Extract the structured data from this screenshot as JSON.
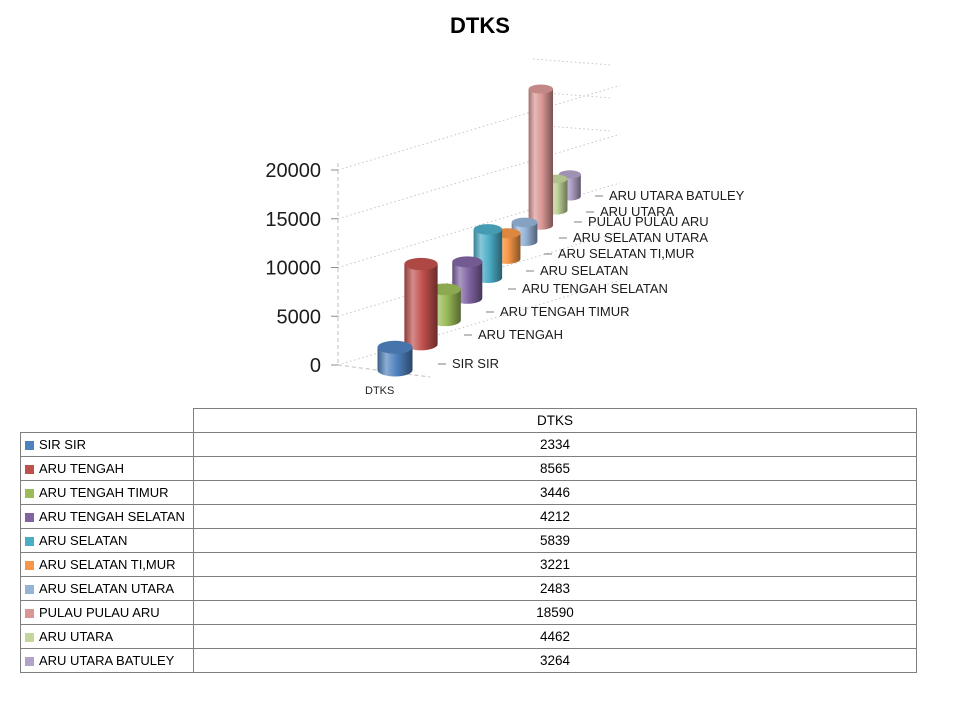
{
  "title": "DTKS",
  "chart_data": {
    "type": "bar",
    "variant": "3d-cylinder",
    "title": "DTKS",
    "categories": [
      "SIR SIR",
      "ARU TENGAH",
      "ARU TENGAH TIMUR",
      "ARU TENGAH SELATAN",
      "ARU SELATAN",
      "ARU SELATAN TI,MUR",
      "ARU SELATAN UTARA",
      "PULAU PULAU ARU",
      "ARU UTARA",
      "ARU UTARA BATULEY"
    ],
    "series": [
      {
        "name": "DTKS",
        "values": [
          2334,
          8565,
          3446,
          4212,
          5839,
          3221,
          2483,
          18590,
          4462,
          3264
        ]
      }
    ],
    "ylim": [
      0,
      20000
    ],
    "yticks": [
      0,
      5000,
      10000,
      15000,
      20000
    ],
    "colors": [
      "#4F81BD",
      "#C0504D",
      "#9BBB59",
      "#8064A2",
      "#4BACC6",
      "#F79646",
      "#95B3D7",
      "#D99694",
      "#C3D69B",
      "#B2A2C7"
    ],
    "floor_axis_label": "DTKS",
    "legend_position": "none",
    "gridlines": true
  },
  "table": {
    "header": "DTKS",
    "rows": [
      {
        "label": "SIR SIR",
        "value": 2334,
        "color": "#4F81BD"
      },
      {
        "label": "ARU TENGAH",
        "value": 8565,
        "color": "#C0504D"
      },
      {
        "label": "ARU TENGAH TIMUR",
        "value": 3446,
        "color": "#9BBB59"
      },
      {
        "label": "ARU TENGAH SELATAN",
        "value": 4212,
        "color": "#8064A2"
      },
      {
        "label": "ARU SELATAN",
        "value": 5839,
        "color": "#4BACC6"
      },
      {
        "label": "ARU SELATAN TI,MUR",
        "value": 3221,
        "color": "#F79646"
      },
      {
        "label": "ARU SELATAN UTARA",
        "value": 2483,
        "color": "#95B3D7"
      },
      {
        "label": "PULAU PULAU ARU",
        "value": 18590,
        "color": "#D99694"
      },
      {
        "label": "ARU UTARA",
        "value": 4462,
        "color": "#C3D69B"
      },
      {
        "label": "ARU UTARA BATULEY",
        "value": 3264,
        "color": "#B2A2C7"
      }
    ]
  }
}
